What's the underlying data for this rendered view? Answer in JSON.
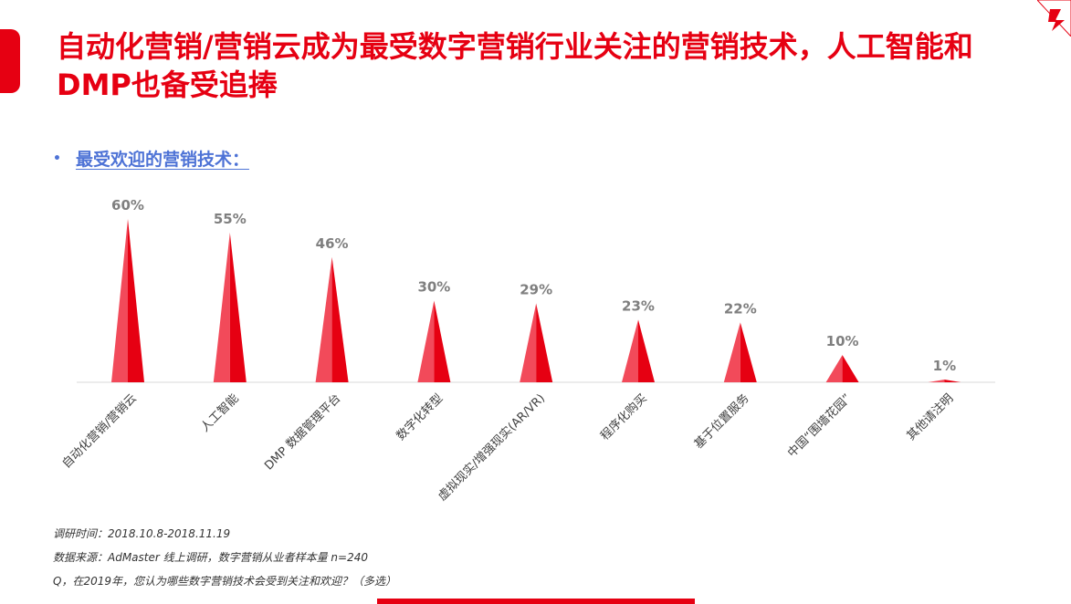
{
  "header": {
    "title": "自动化营销/营销云成为最受数字营销行业关注的营销技术，人工智能和DMP也备受追捧"
  },
  "section": {
    "subtitle": "最受欢迎的营销技术："
  },
  "colors": {
    "accent": "#e60012",
    "peak_light": "#f24a5a",
    "peak_dark": "#e60012",
    "subtitle_blue": "#4e73d6"
  },
  "chart_data": {
    "type": "bar",
    "categories": [
      "自动化营销/营销云",
      "人工智能",
      "DMP 数据管理平台",
      "数字化转型",
      "虚拟现实/增强现实(AR/VR)",
      "程序化购买",
      "基于位置服务",
      "中国“围墙花园”",
      "其他请注明"
    ],
    "values": [
      60,
      55,
      46,
      30,
      29,
      23,
      22,
      10,
      1
    ],
    "value_labels": [
      "60%",
      "55%",
      "46%",
      "30%",
      "29%",
      "23%",
      "22%",
      "10%",
      "1%"
    ],
    "ylim": [
      0,
      60
    ],
    "grid": false,
    "legend": "none"
  },
  "footnotes": {
    "survey_time": "调研时间：2018.10.8-2018.11.19",
    "data_source": "数据来源：AdMaster  线上调研，数字营销从业者样本量 n=240",
    "question": "Q，在2019年，您认为哪些数字营销技术会受到关注和欢迎？（多选）"
  }
}
